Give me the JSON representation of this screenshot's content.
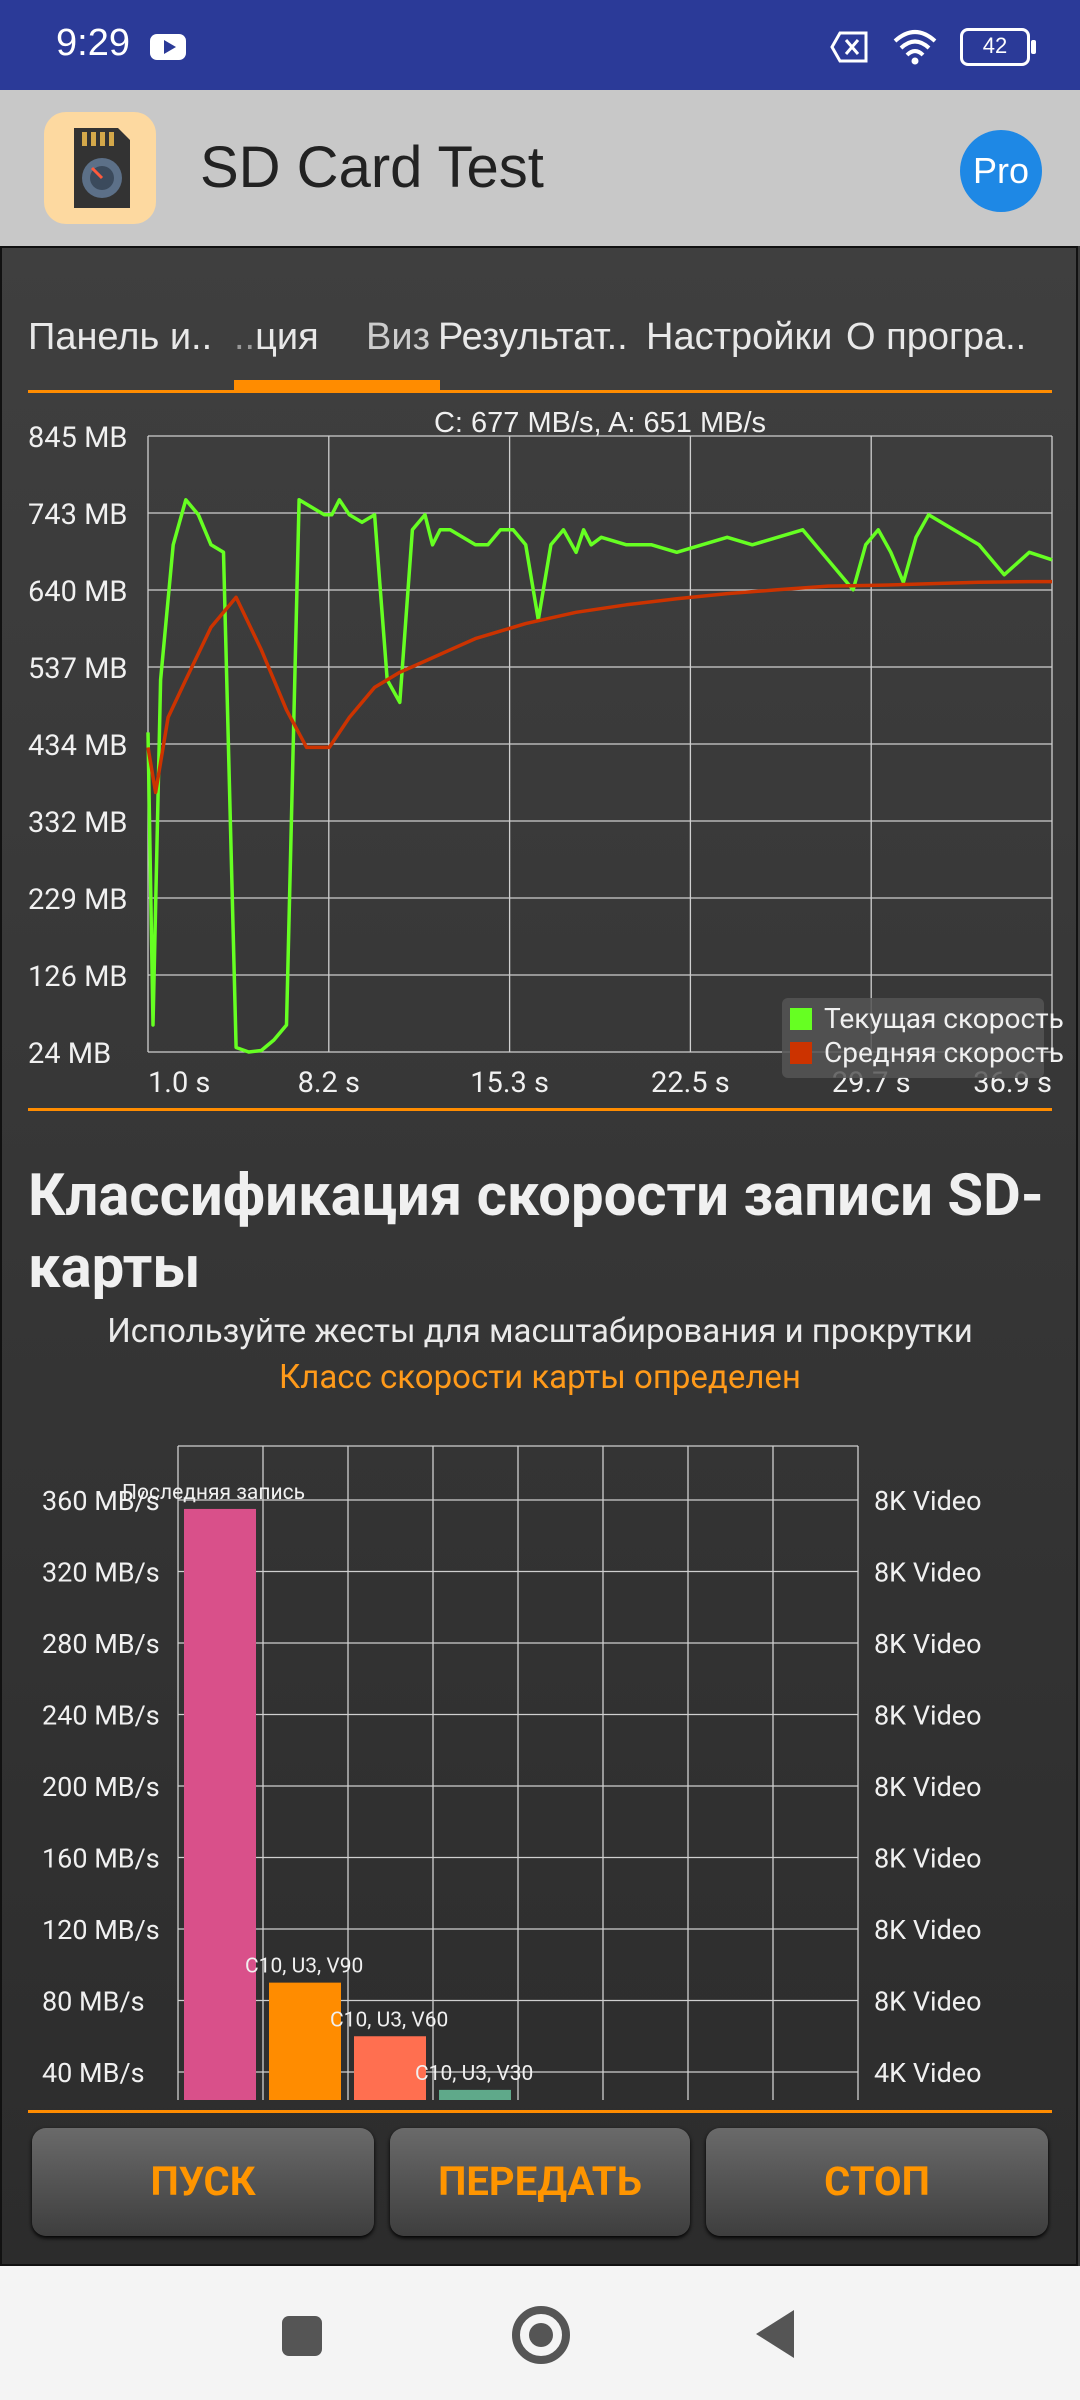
{
  "status_bar": {
    "time": "9:29",
    "battery": "42"
  },
  "app": {
    "title": "SD Card Test",
    "pro_label": "Pro"
  },
  "tabs": [
    "Панель и..",
    "ция",
    "Виз",
    "Результат..",
    "Настройки",
    "О програ.."
  ],
  "speed_chart": {
    "type": "line",
    "title": "C: 677 MB/s, A: 651 MB/s",
    "y_ticks": [
      "845 MB",
      "743 MB",
      "640 MB",
      "537 MB",
      "434 MB",
      "332 MB",
      "229 MB",
      "126 MB",
      "24 MB"
    ],
    "x_ticks": [
      "1.0 s",
      "8.2 s",
      "15.3 s",
      "22.5 s",
      "29.7 s",
      "36.9 s"
    ],
    "ylim": [
      24,
      845
    ],
    "xlim": [
      1.0,
      36.9
    ],
    "grid": true,
    "legend_position": "bottom-right",
    "colors": {
      "current": "#66ff22",
      "average": "#cc3300"
    },
    "series": [
      {
        "name": "Текущая скорость",
        "x": [
          1.0,
          1.2,
          1.5,
          2.0,
          2.5,
          3.0,
          3.5,
          4.0,
          4.5,
          5.0,
          5.5,
          6.0,
          6.5,
          7.0,
          7.5,
          8.0,
          8.3,
          8.6,
          9.0,
          9.5,
          10.0,
          10.5,
          11.0,
          11.5,
          12.0,
          12.3,
          12.6,
          13.0,
          13.5,
          14.0,
          14.5,
          15.0,
          15.5,
          16.0,
          16.5,
          17.0,
          17.5,
          18.0,
          18.3,
          18.6,
          19.0,
          20.0,
          21.0,
          22.0,
          23.0,
          24.0,
          25.0,
          26.0,
          27.0,
          28.0,
          29.0,
          29.5,
          30.0,
          30.5,
          31.0,
          31.5,
          32.0,
          33.0,
          34.0,
          35.0,
          36.0,
          36.9
        ],
        "values": [
          450,
          60,
          520,
          700,
          760,
          740,
          700,
          690,
          30,
          24,
          26,
          40,
          60,
          760,
          750,
          740,
          740,
          760,
          740,
          730,
          740,
          520,
          490,
          720,
          740,
          700,
          720,
          720,
          710,
          700,
          700,
          720,
          720,
          700,
          600,
          700,
          720,
          690,
          720,
          700,
          710,
          700,
          700,
          690,
          700,
          710,
          700,
          710,
          720,
          680,
          640,
          700,
          720,
          690,
          650,
          710,
          740,
          720,
          700,
          660,
          690,
          680
        ]
      },
      {
        "name": "Средняя скорость",
        "x": [
          1.0,
          1.3,
          1.8,
          2.5,
          3.5,
          4.5,
          5.5,
          6.5,
          7.3,
          8.2,
          9.0,
          10.0,
          11.0,
          12.0,
          13.0,
          14.0,
          15.0,
          16.0,
          18.0,
          20.0,
          22.0,
          24.0,
          26.0,
          28.0,
          30.0,
          32.0,
          34.0,
          36.0,
          36.9
        ],
        "values": [
          430,
          370,
          470,
          520,
          590,
          630,
          560,
          480,
          430,
          430,
          470,
          510,
          530,
          545,
          560,
          575,
          585,
          595,
          610,
          620,
          628,
          635,
          640,
          645,
          646,
          648,
          650,
          651,
          651
        ]
      }
    ]
  },
  "classification": {
    "title": "Классификация скорости записи SD-карты",
    "hint": "Используйте жесты для масштабирования и прокрутки",
    "status": "Класс скорости карты определен"
  },
  "class_chart": {
    "type": "bar",
    "y_ticks": [
      "360 MB/s",
      "320 MB/s",
      "280 MB/s",
      "240 MB/s",
      "200 MB/s",
      "160 MB/s",
      "120 MB/s",
      "80 MB/s",
      "40 MB/s"
    ],
    "right_ticks": [
      "8K Video",
      "8K Video",
      "8K Video",
      "8K Video",
      "8K Video",
      "8K Video",
      "8K Video",
      "8K Video",
      "4K Video"
    ],
    "grid": true,
    "bars": [
      {
        "label": "Последняя запись",
        "value": 355,
        "color": "#d9508a"
      },
      {
        "label": "C10, U3, V90",
        "value": 90,
        "color": "#ff8c00"
      },
      {
        "label": "C10, U3, V60",
        "value": 60,
        "color": "#ff6f50"
      },
      {
        "label": "C10, U3, V30",
        "value": 30,
        "color": "#5fa98a"
      }
    ]
  },
  "buttons": {
    "start": "ПУСК",
    "transfer": "ПЕРЕДАТЬ",
    "stop": "СТОП"
  }
}
